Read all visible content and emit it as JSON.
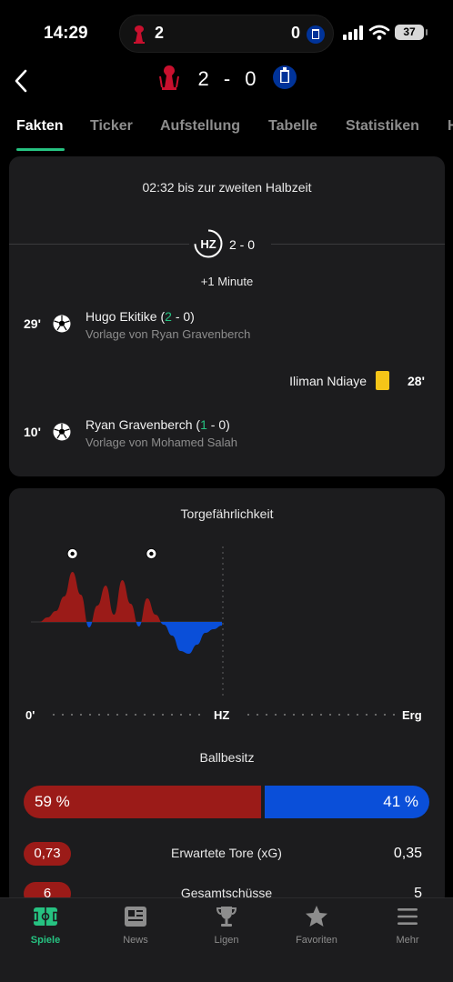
{
  "status_bar": {
    "time": "14:29",
    "battery": "37"
  },
  "live_activity": {
    "home_score": "2",
    "away_score": "0"
  },
  "header": {
    "home_score": "2",
    "separator": "-",
    "away_score": "0",
    "icons": {
      "back": "chevron-left-icon",
      "home": "liverpool-crest-icon",
      "away": "everton-crest-icon"
    }
  },
  "tabs": [
    {
      "label": "Fakten",
      "active": true
    },
    {
      "label": "Ticker",
      "active": false
    },
    {
      "label": "Aufstellung",
      "active": false
    },
    {
      "label": "Tabelle",
      "active": false
    },
    {
      "label": "Statistiken",
      "active": false
    },
    {
      "label": "H",
      "active": false
    }
  ],
  "facts": {
    "halftime_note": "02:32 bis zur zweiten Halbzeit",
    "ht_badge": "HZ",
    "ht_score": "2 - 0",
    "added_time": "+1 Minute",
    "events": [
      {
        "minute": "29'",
        "player": "Hugo Ekitike",
        "score_open": " (",
        "score_home": "2",
        "score_rest": " - 0)",
        "assist": "Vorlage von Ryan Gravenberch",
        "side": "home",
        "type": "goal"
      },
      {
        "minute": "28'",
        "player": "Iliman Ndiaye",
        "side": "away",
        "type": "yellow-card"
      },
      {
        "minute": "10'",
        "player": "Ryan Gravenberch",
        "score_open": " (",
        "score_home": "1",
        "score_rest": " - 0)",
        "assist": "Vorlage von Mohamed Salah",
        "side": "home",
        "type": "goal"
      }
    ]
  },
  "momentum": {
    "title": "Torgefährlichkeit",
    "axis": {
      "start": "0'",
      "half": "HZ",
      "end": "Erg"
    },
    "colors": {
      "home": "#9b1b18",
      "away": "#0a4fd9",
      "accent": "#26c281"
    }
  },
  "chart_data": {
    "type": "area",
    "x": [
      0,
      2,
      4,
      6,
      8,
      10,
      12,
      14,
      16,
      18,
      20,
      22,
      24,
      26,
      28,
      30,
      32,
      34,
      36,
      38,
      40,
      42,
      44,
      46
    ],
    "values": [
      0,
      0,
      5,
      12,
      28,
      55,
      30,
      -6,
      18,
      40,
      8,
      46,
      20,
      -5,
      26,
      8,
      -3,
      -15,
      -32,
      -35,
      -25,
      -12,
      -8,
      -4
    ],
    "goal_markers": [
      10,
      29
    ],
    "xlabel": "",
    "ylabel": ""
  },
  "possession": {
    "title": "Ballbesitz",
    "home": "59 %",
    "away": "41 %",
    "home_pct": 59
  },
  "stats": [
    {
      "label": "Erwartete Tore (xG)",
      "home": "0,73",
      "away": "0,35"
    },
    {
      "label": "Gesamtschüsse",
      "home": "6",
      "away": "5"
    }
  ],
  "bottom_nav": [
    {
      "label": "Spiele",
      "icon": "pitch-icon",
      "active": true
    },
    {
      "label": "News",
      "icon": "newspaper-icon",
      "active": false
    },
    {
      "label": "Ligen",
      "icon": "trophy-icon",
      "active": false
    },
    {
      "label": "Favoriten",
      "icon": "star-icon",
      "active": false
    },
    {
      "label": "Mehr",
      "icon": "menu-icon",
      "active": false
    }
  ]
}
